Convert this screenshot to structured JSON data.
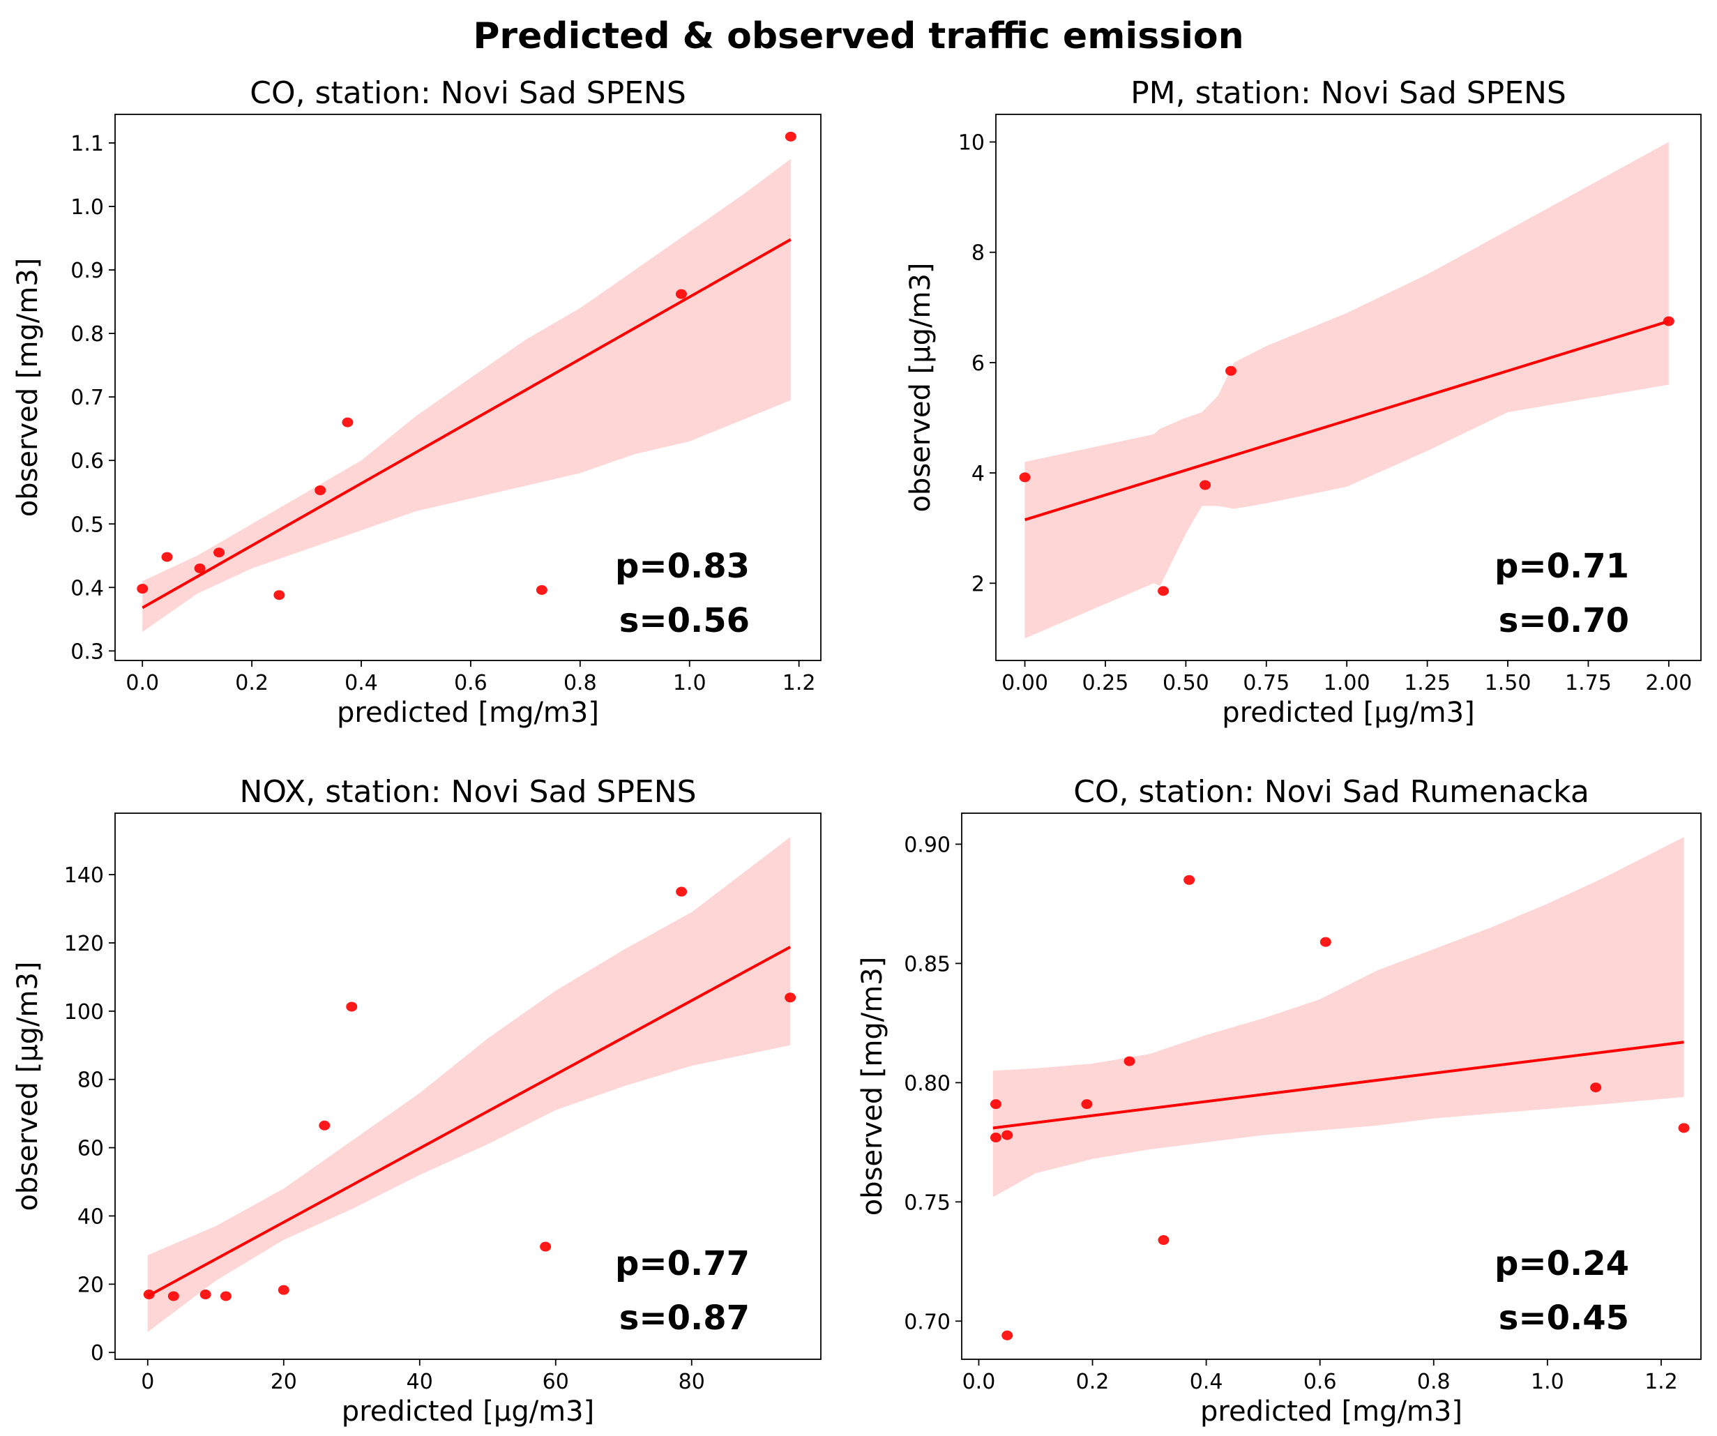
{
  "figure": {
    "title": "Predicted & observed traffic emission"
  },
  "style": {
    "point_color": "#ff0000",
    "line_color": "#ff0000",
    "band_color": "#ffd6d6"
  },
  "chart_data": [
    {
      "type": "scatter",
      "title": "CO, station: Novi Sad SPENS",
      "xlabel": "predicted [mg/m3]",
      "ylabel": "observed [mg/m3]",
      "xlim": [
        -0.05,
        1.24
      ],
      "ylim": [
        0.285,
        1.145
      ],
      "xticks": [
        0.0,
        0.2,
        0.4,
        0.6,
        0.8,
        1.0,
        1.2
      ],
      "xtick_labels": [
        "0.0",
        "0.2",
        "0.4",
        "0.6",
        "0.8",
        "1.0",
        "1.2"
      ],
      "yticks": [
        0.3,
        0.4,
        0.5,
        0.6,
        0.7,
        0.8,
        0.9,
        1.0,
        1.1
      ],
      "ytick_labels": [
        "0.3",
        "0.4",
        "0.5",
        "0.6",
        "0.7",
        "0.8",
        "0.9",
        "1.0",
        "1.1"
      ],
      "points": [
        {
          "x": 0.0,
          "y": 0.398
        },
        {
          "x": 0.045,
          "y": 0.448
        },
        {
          "x": 0.105,
          "y": 0.43
        },
        {
          "x": 0.14,
          "y": 0.455
        },
        {
          "x": 0.25,
          "y": 0.388
        },
        {
          "x": 0.325,
          "y": 0.553
        },
        {
          "x": 0.375,
          "y": 0.66
        },
        {
          "x": 0.73,
          "y": 0.396
        },
        {
          "x": 0.985,
          "y": 0.862
        },
        {
          "x": 1.185,
          "y": 1.11
        }
      ],
      "regression_line": {
        "x": [
          0.0,
          1.185
        ],
        "y": [
          0.368,
          0.948
        ]
      },
      "confidence_band": {
        "x": [
          0.0,
          0.1,
          0.2,
          0.3,
          0.4,
          0.5,
          0.6,
          0.7,
          0.8,
          0.9,
          1.0,
          1.1,
          1.185
        ],
        "upper": [
          0.41,
          0.45,
          0.5,
          0.55,
          0.6,
          0.67,
          0.73,
          0.79,
          0.84,
          0.9,
          0.96,
          1.02,
          1.075
        ],
        "lower": [
          0.33,
          0.39,
          0.43,
          0.46,
          0.49,
          0.52,
          0.54,
          0.56,
          0.58,
          0.61,
          0.63,
          0.665,
          0.695
        ]
      },
      "stats": {
        "p": "p=0.83",
        "s": "s=0.56"
      },
      "grid": false
    },
    {
      "type": "scatter",
      "title": "PM, station: Novi Sad SPENS",
      "xlabel": "predicted [µg/m3]",
      "ylabel": "observed [µg/m3]",
      "xlim": [
        -0.09,
        2.1
      ],
      "ylim": [
        0.6,
        10.5
      ],
      "xticks": [
        0.0,
        0.25,
        0.5,
        0.75,
        1.0,
        1.25,
        1.5,
        1.75,
        2.0
      ],
      "xtick_labels": [
        "0.00",
        "0.25",
        "0.50",
        "0.75",
        "1.00",
        "1.25",
        "1.50",
        "1.75",
        "2.00"
      ],
      "yticks": [
        2,
        4,
        6,
        8,
        10
      ],
      "ytick_labels": [
        "2",
        "4",
        "6",
        "8",
        "10"
      ],
      "points": [
        {
          "x": 0.0,
          "y": 3.92
        },
        {
          "x": 0.43,
          "y": 1.86
        },
        {
          "x": 0.56,
          "y": 3.78
        },
        {
          "x": 0.64,
          "y": 5.85
        },
        {
          "x": 2.0,
          "y": 6.75
        }
      ],
      "regression_line": {
        "x": [
          0.0,
          2.0
        ],
        "y": [
          3.15,
          6.75
        ]
      },
      "confidence_band": {
        "x": [
          0.0,
          0.4,
          0.42,
          0.5,
          0.55,
          0.6,
          0.65,
          0.75,
          1.0,
          1.25,
          1.5,
          1.75,
          2.0
        ],
        "upper": [
          4.2,
          4.7,
          4.8,
          5.0,
          5.1,
          5.4,
          6.0,
          6.3,
          6.9,
          7.6,
          8.4,
          9.2,
          10.0
        ],
        "lower": [
          1.0,
          2.0,
          1.95,
          2.9,
          3.4,
          3.4,
          3.35,
          3.45,
          3.75,
          4.4,
          5.1,
          5.35,
          5.6
        ]
      },
      "stats": {
        "p": "p=0.71",
        "s": "s=0.70"
      },
      "grid": false
    },
    {
      "type": "scatter",
      "title": "NOX, station: Novi Sad SPENS",
      "xlabel": "predicted [µg/m3]",
      "ylabel": "observed [µg/m3]",
      "xlim": [
        -4.8,
        99.0
      ],
      "ylim": [
        -2.0,
        158.0
      ],
      "xticks": [
        0,
        20,
        40,
        60,
        80
      ],
      "xtick_labels": [
        "0",
        "20",
        "40",
        "60",
        "80"
      ],
      "yticks": [
        0,
        20,
        40,
        60,
        80,
        100,
        120,
        140
      ],
      "ytick_labels": [
        "0",
        "20",
        "40",
        "60",
        "80",
        "100",
        "120",
        "140"
      ],
      "points": [
        {
          "x": 0.2,
          "y": 17.0
        },
        {
          "x": 3.8,
          "y": 16.5
        },
        {
          "x": 8.5,
          "y": 17.0
        },
        {
          "x": 11.5,
          "y": 16.5
        },
        {
          "x": 20.0,
          "y": 18.3
        },
        {
          "x": 26.0,
          "y": 66.5
        },
        {
          "x": 30.0,
          "y": 101.3
        },
        {
          "x": 58.5,
          "y": 31.0
        },
        {
          "x": 78.5,
          "y": 135.0
        },
        {
          "x": 94.5,
          "y": 104.0
        }
      ],
      "regression_line": {
        "x": [
          0.0,
          94.5
        ],
        "y": [
          16.5,
          118.8
        ]
      },
      "confidence_band": {
        "x": [
          0.0,
          10.0,
          20.0,
          30.0,
          40.0,
          50.0,
          60.0,
          70.0,
          80.0,
          94.5
        ],
        "upper": [
          28.5,
          37.0,
          48.0,
          62.0,
          76.0,
          92.0,
          106.0,
          118.0,
          129.0,
          151.0
        ],
        "lower": [
          6.0,
          21.0,
          33.0,
          42.0,
          52.0,
          61.0,
          71.0,
          78.0,
          84.0,
          90.0
        ]
      },
      "stats": {
        "p": "p=0.77",
        "s": "s=0.87"
      },
      "grid": false
    },
    {
      "type": "scatter",
      "title": "CO, station: Novi Sad Rumenacka",
      "xlabel": "predicted [mg/m3]",
      "ylabel": "observed [mg/m3]",
      "xlim": [
        -0.03,
        1.27
      ],
      "ylim": [
        0.684,
        0.913
      ],
      "xticks": [
        0.0,
        0.2,
        0.4,
        0.6,
        0.8,
        1.0,
        1.2
      ],
      "xtick_labels": [
        "0.0",
        "0.2",
        "0.4",
        "0.6",
        "0.8",
        "1.0",
        "1.2"
      ],
      "yticks": [
        0.7,
        0.75,
        0.8,
        0.85,
        0.9
      ],
      "ytick_labels": [
        "0.70",
        "0.75",
        "0.80",
        "0.85",
        "0.90"
      ],
      "points": [
        {
          "x": 0.03,
          "y": 0.791
        },
        {
          "x": 0.03,
          "y": 0.777
        },
        {
          "x": 0.05,
          "y": 0.778
        },
        {
          "x": 0.05,
          "y": 0.694
        },
        {
          "x": 0.19,
          "y": 0.791
        },
        {
          "x": 0.265,
          "y": 0.809
        },
        {
          "x": 0.325,
          "y": 0.734
        },
        {
          "x": 0.37,
          "y": 0.885
        },
        {
          "x": 0.61,
          "y": 0.859
        },
        {
          "x": 1.085,
          "y": 0.798
        },
        {
          "x": 1.24,
          "y": 0.781
        }
      ],
      "regression_line": {
        "x": [
          0.025,
          1.24
        ],
        "y": [
          0.781,
          0.817
        ]
      },
      "confidence_band": {
        "x": [
          0.025,
          0.1,
          0.2,
          0.3,
          0.4,
          0.5,
          0.6,
          0.7,
          0.8,
          0.9,
          1.0,
          1.1,
          1.24
        ],
        "upper": [
          0.805,
          0.806,
          0.808,
          0.812,
          0.82,
          0.827,
          0.835,
          0.847,
          0.856,
          0.865,
          0.875,
          0.886,
          0.903
        ],
        "lower": [
          0.752,
          0.762,
          0.768,
          0.772,
          0.775,
          0.778,
          0.78,
          0.782,
          0.785,
          0.787,
          0.789,
          0.791,
          0.794
        ]
      },
      "stats": {
        "p": "p=0.24",
        "s": "s=0.45"
      },
      "grid": false
    }
  ]
}
